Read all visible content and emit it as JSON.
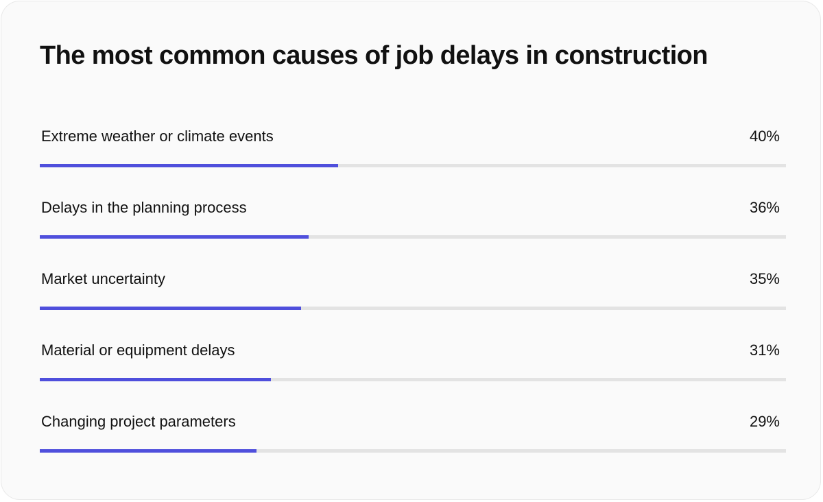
{
  "chart_data": {
    "type": "bar",
    "title": "The most common causes of job delays in construction",
    "categories": [
      "Extreme weather or climate events",
      "Delays in the planning process",
      "Market uncertainty",
      "Material or equipment delays",
      "Changing project parameters"
    ],
    "values": [
      40,
      36,
      35,
      31,
      29
    ],
    "value_labels": [
      "40%",
      "36%",
      "35%",
      "31%",
      "29%"
    ],
    "xlim": [
      0,
      100
    ],
    "orientation": "horizontal",
    "grid": false,
    "legend": "none"
  },
  "colors": {
    "bar_fill": "#4f4fdc",
    "bar_track": "#e3e3e3",
    "card_background": "#fafafa"
  }
}
